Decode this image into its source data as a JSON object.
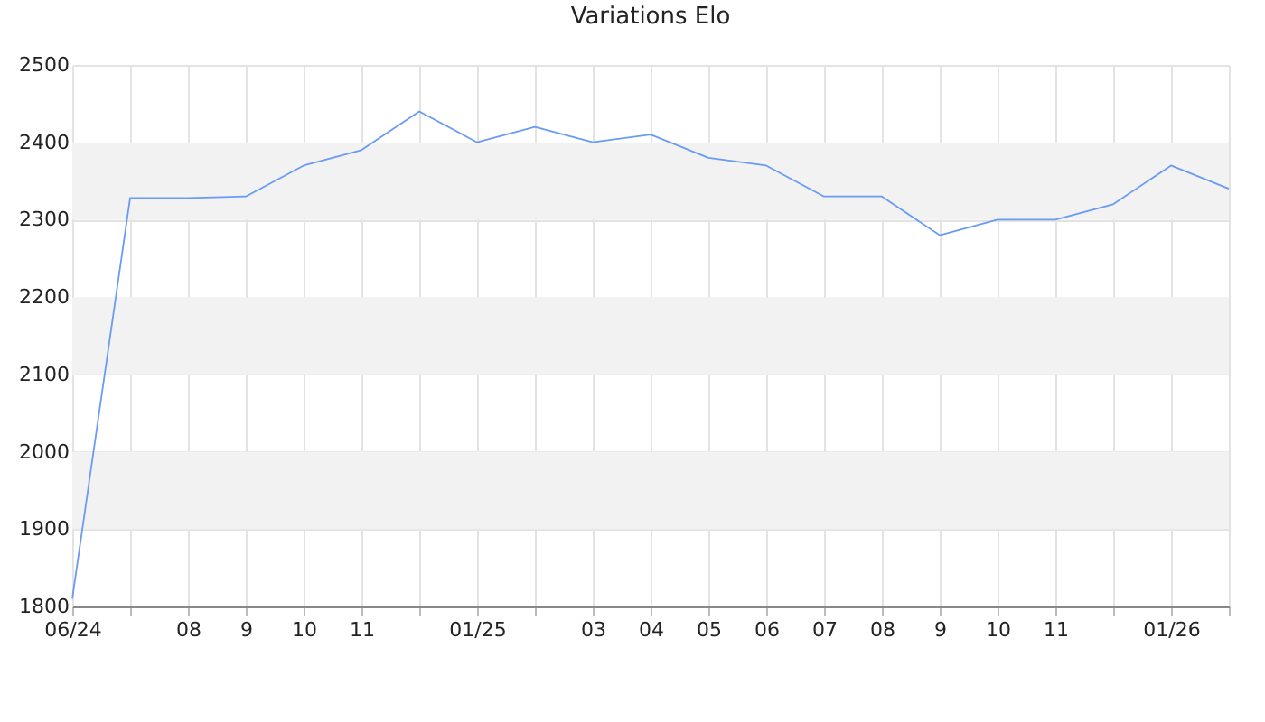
{
  "chart_data": {
    "type": "line",
    "title": "Variations Elo",
    "categories": [
      "06/24",
      null,
      "08",
      "9",
      "10",
      "11",
      null,
      "01/25",
      null,
      "03",
      "04",
      "05",
      "06",
      "07",
      "08",
      "9",
      "10",
      "11",
      null,
      "01/26",
      null
    ],
    "series": [
      {
        "color": "#6a9bf4",
        "values": [
          1810,
          2328,
          2328,
          2330,
          2370,
          2390,
          2440,
          2400,
          2420,
          2400,
          2410,
          2380,
          2370,
          2330,
          2330,
          2280,
          2300,
          2300,
          2320,
          2370,
          2340
        ]
      }
    ],
    "ylim": [
      1800,
      2500
    ],
    "yticks": [
      1800,
      1900,
      2000,
      2100,
      2200,
      2300,
      2400,
      2500
    ],
    "bands": [
      {
        "axis": "y",
        "from": 2300,
        "to": 2400,
        "color": "#f2f2f2"
      },
      {
        "axis": "y",
        "from": 2100,
        "to": 2200,
        "color": "#f2f2f2"
      },
      {
        "axis": "y",
        "from": 1900,
        "to": 2000,
        "color": "#f2f2f2"
      }
    ],
    "grid": true,
    "marker": "none",
    "line_style": "solid"
  }
}
